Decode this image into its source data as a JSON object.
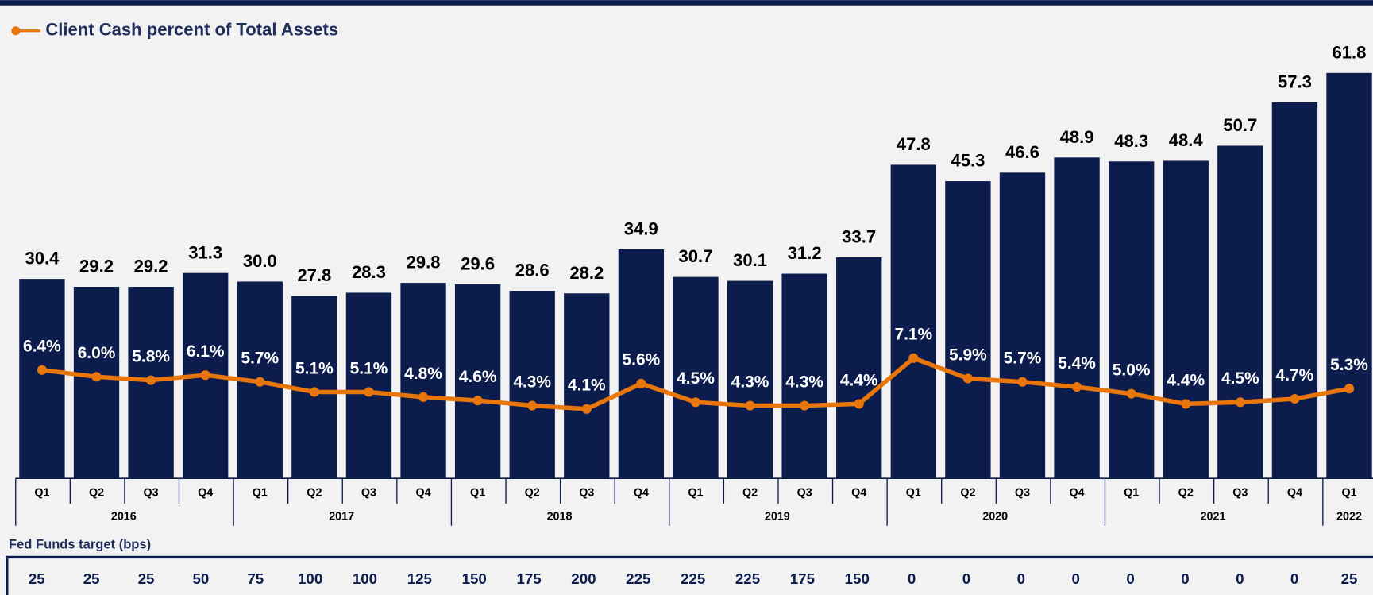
{
  "chart_data": {
    "type": "bar",
    "categories": [
      "Q1",
      "Q2",
      "Q3",
      "Q4",
      "Q1",
      "Q2",
      "Q3",
      "Q4",
      "Q1",
      "Q2",
      "Q3",
      "Q4",
      "Q1",
      "Q2",
      "Q3",
      "Q4",
      "Q1",
      "Q2",
      "Q3",
      "Q4",
      "Q1",
      "Q2",
      "Q3",
      "Q4",
      "Q1"
    ],
    "years": [
      "2016",
      "2017",
      "2018",
      "2019",
      "2020",
      "2021",
      "2022"
    ],
    "bars": {
      "color": "#0b1c4d",
      "values": [
        30.4,
        29.2,
        29.2,
        31.3,
        30.0,
        27.8,
        28.3,
        29.8,
        29.6,
        28.6,
        28.2,
        34.9,
        30.7,
        30.1,
        31.2,
        33.7,
        47.8,
        45.3,
        46.6,
        48.9,
        48.3,
        48.4,
        50.7,
        57.3,
        61.8
      ],
      "value_labels": [
        "30.4",
        "29.2",
        "29.2",
        "31.3",
        "30.0",
        "27.8",
        "28.3",
        "29.8",
        "29.6",
        "28.6",
        "28.2",
        "34.9",
        "30.7",
        "30.1",
        "31.2",
        "33.7",
        "47.8",
        "45.3",
        "46.6",
        "48.9",
        "48.3",
        "48.4",
        "50.7",
        "57.3",
        "61.8"
      ]
    },
    "line": {
      "name": "Client Cash percent of Total Assets",
      "color": "#e8760a",
      "values": [
        6.4,
        6.0,
        5.8,
        6.1,
        5.7,
        5.1,
        5.1,
        4.8,
        4.6,
        4.3,
        4.1,
        5.6,
        4.5,
        4.3,
        4.3,
        4.4,
        7.1,
        5.9,
        5.7,
        5.4,
        5.0,
        4.4,
        4.5,
        4.7,
        5.3
      ],
      "value_labels": [
        "6.4%",
        "6.0%",
        "5.8%",
        "6.1%",
        "5.7%",
        "5.1%",
        "5.1%",
        "4.8%",
        "4.6%",
        "4.3%",
        "4.1%",
        "5.6%",
        "4.5%",
        "4.3%",
        "4.3%",
        "4.4%",
        "7.1%",
        "5.9%",
        "5.7%",
        "5.4%",
        "5.0%",
        "4.4%",
        "4.5%",
        "4.7%",
        "5.3%"
      ]
    },
    "fed_funds": {
      "title": "Fed Funds target (bps)",
      "values": [
        25,
        25,
        25,
        50,
        75,
        100,
        100,
        125,
        150,
        175,
        200,
        225,
        225,
        225,
        175,
        150,
        0,
        0,
        0,
        0,
        0,
        0,
        0,
        0,
        25
      ]
    }
  }
}
